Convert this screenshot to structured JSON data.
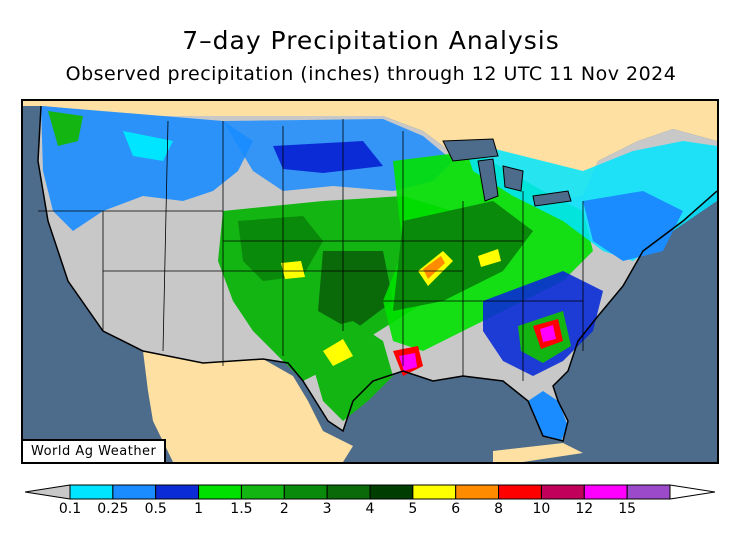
{
  "title": "7–day Precipitation Analysis",
  "subtitle": "Observed precipitation (inches) through 12 UTC 11 Nov 2024",
  "credit": "World Ag Weather",
  "legend": {
    "labels": [
      "0.1",
      "0.25",
      "0.5",
      "1",
      "1.5",
      "2",
      "3",
      "4",
      "5",
      "6",
      "8",
      "10",
      "12",
      "15"
    ],
    "colors": [
      "#00e5ff",
      "#1a8cff",
      "#0a2bd6",
      "#00e000",
      "#12b512",
      "#0a8a0a",
      "#0a6a0a",
      "#003d00",
      "#ffff00",
      "#ff8c00",
      "#ff0000",
      "#c0005a",
      "#ff00ff",
      "#9b4bc9"
    ],
    "below_color": "#c8c8c8",
    "above_color": "#ffffff"
  },
  "map_colors": {
    "ocean": "#4d6b8a",
    "land_outside": "#fde0a2",
    "no_precip": "#c8c8c8"
  }
}
